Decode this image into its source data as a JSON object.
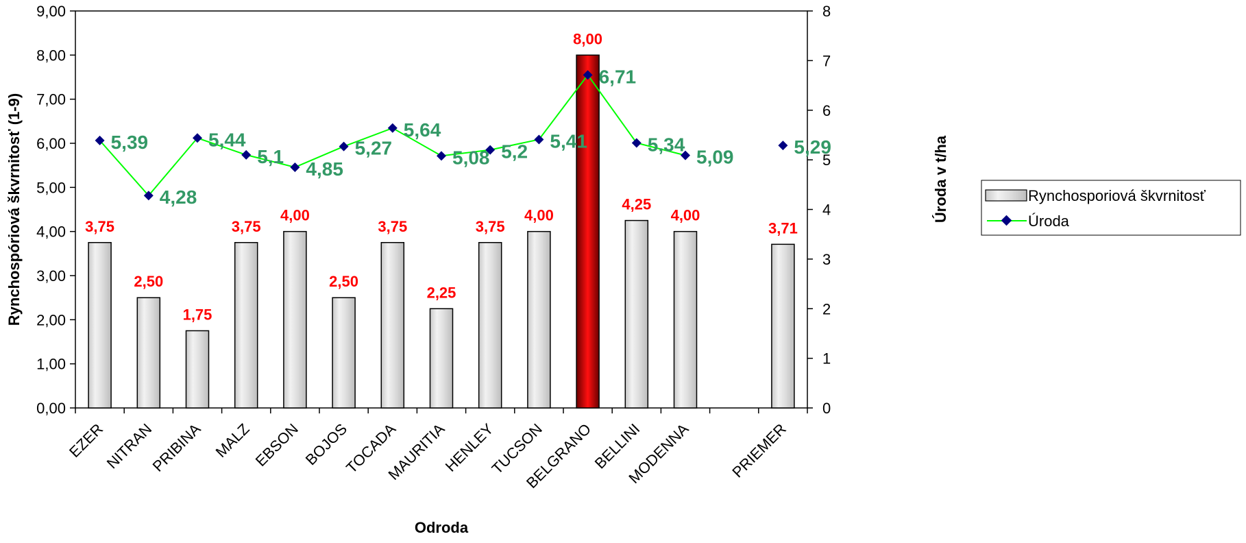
{
  "chart_data": {
    "type": "bar",
    "xlabel": "Odroda",
    "ylabel": "Rynchospóriová škvrnitosť (1-9)",
    "y2label": "Úroda v t/ha",
    "ylim": [
      0,
      9
    ],
    "y2lim": [
      0,
      8
    ],
    "grid": false,
    "legend_position": "right",
    "categories": [
      "EZER",
      "NITRAN",
      "PRIBINA",
      "MALZ",
      "EBSON",
      "BOJOS",
      "TOCADA",
      "MAURITIA",
      "HENLEY",
      "TUCSON",
      "BELGRANO",
      "BELLINI",
      "MODENNA",
      "",
      "PRIEMER"
    ],
    "y_ticks": [
      "0,00",
      "1,00",
      "2,00",
      "3,00",
      "4,00",
      "5,00",
      "6,00",
      "7,00",
      "8,00",
      "9,00"
    ],
    "y2_ticks": [
      "0",
      "1",
      "2",
      "3",
      "4",
      "5",
      "6",
      "7",
      "8"
    ],
    "series": [
      {
        "name": "Rynchosporiová škvrnitosť",
        "type": "bar",
        "axis": "left",
        "values": [
          3.75,
          2.5,
          1.75,
          3.75,
          4.0,
          2.5,
          3.75,
          2.25,
          3.75,
          4.0,
          8.0,
          4.25,
          4.0,
          null,
          3.71
        ],
        "labels": [
          "3,75",
          "2,50",
          "1,75",
          "3,75",
          "4,00",
          "2,50",
          "3,75",
          "2,25",
          "3,75",
          "4,00",
          "8,00",
          "4,25",
          "4,00",
          "",
          "3,71"
        ],
        "highlight_index": 10,
        "label_color": "#ff0000"
      },
      {
        "name": "Úroda",
        "type": "line",
        "axis": "right",
        "values": [
          5.39,
          4.28,
          5.44,
          5.1,
          4.85,
          5.27,
          5.64,
          5.08,
          5.2,
          5.41,
          6.71,
          5.34,
          5.09,
          null,
          5.29
        ],
        "labels": [
          "5,39",
          "4,28",
          "5,44",
          "5,1",
          "4,85",
          "5,27",
          "5,64",
          "5,08",
          "5,2",
          "5,41",
          "6,71",
          "5,34",
          "5,09",
          "",
          "5,29"
        ],
        "line_color": "#00ff00",
        "marker_color": "#000080",
        "label_color": "#339966"
      }
    ]
  }
}
